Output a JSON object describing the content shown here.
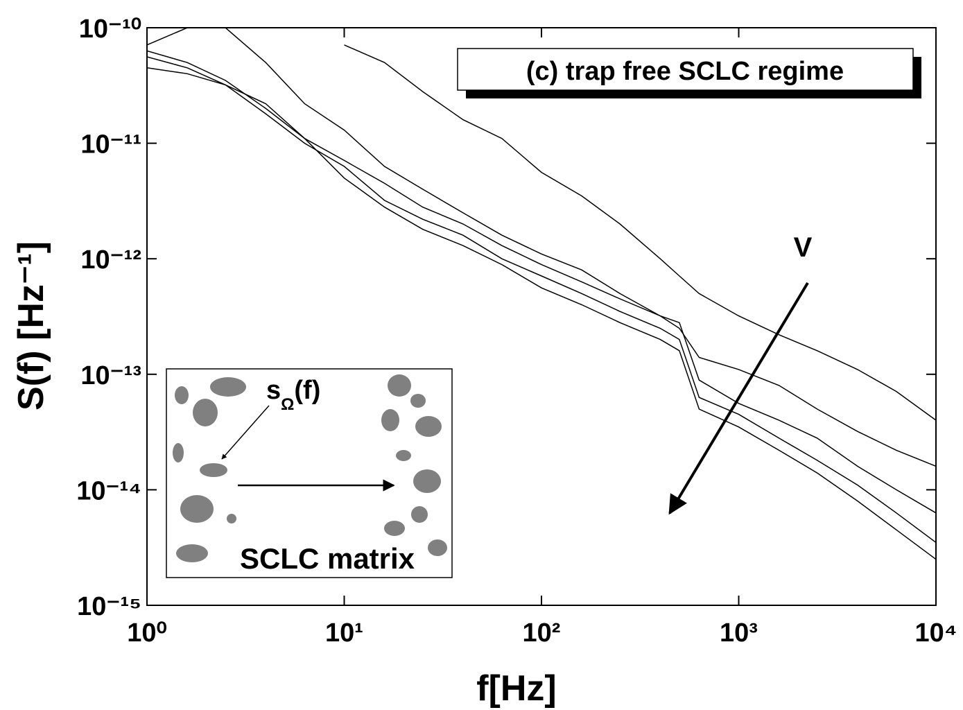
{
  "chart_data": {
    "type": "line",
    "xlabel": "f[Hz]",
    "ylabel": "S(f) [Hz⁻¹]",
    "xscale": "log",
    "yscale": "log",
    "xlim": [
      1,
      10000
    ],
    "ylim": [
      1e-15,
      1e-10
    ],
    "xticks": [
      {
        "value": 1,
        "label": "10⁰"
      },
      {
        "value": 10,
        "label": "10¹"
      },
      {
        "value": 100,
        "label": "10²"
      },
      {
        "value": 1000,
        "label": "10³"
      },
      {
        "value": 10000,
        "label": "10⁴"
      }
    ],
    "yticks": [
      {
        "value": 1e-15,
        "label": "10⁻¹⁵"
      },
      {
        "value": 1e-14,
        "label": "10⁻¹⁴"
      },
      {
        "value": 1e-13,
        "label": "10⁻¹³"
      },
      {
        "value": 1e-12,
        "label": "10⁻¹²"
      },
      {
        "value": 1e-11,
        "label": "10⁻¹¹"
      },
      {
        "value": 1e-10,
        "label": "10⁻¹⁰"
      }
    ],
    "x": [
      1,
      1.6,
      2.5,
      4,
      6.3,
      10,
      16,
      25,
      40,
      63,
      100,
      160,
      250,
      400,
      500,
      630,
      1000,
      1600,
      2500,
      4000,
      6300,
      10000
    ],
    "series": [
      {
        "color": "#000000",
        "values": [
          null,
          null,
          null,
          null,
          null,
          7.1e-11,
          5e-11,
          2.8e-11,
          1.6e-11,
          1.1e-11,
          5.6e-12,
          3.5e-12,
          2e-12,
          1e-12,
          7.1e-13,
          5e-13,
          3.2e-13,
          2.2e-13,
          1.6e-13,
          1.1e-13,
          7.1e-14,
          4e-14
        ]
      },
      {
        "color": "#000000",
        "values": [
          7.1e-11,
          1e-10,
          1e-10,
          5e-11,
          2.2e-11,
          1.3e-11,
          6.3e-12,
          4e-12,
          2.5e-12,
          1.6e-12,
          1.1e-12,
          8e-13,
          5e-13,
          3.2e-13,
          2.5e-13,
          1.4e-13,
          1.1e-13,
          8e-14,
          5e-14,
          3.2e-14,
          2.2e-14,
          1.6e-14
        ]
      },
      {
        "color": "#000000",
        "values": [
          6.3e-11,
          5e-11,
          3.5e-11,
          2e-11,
          1.1e-11,
          7.1e-12,
          4.5e-12,
          2.8e-12,
          2e-12,
          1.3e-12,
          8.9e-13,
          6.3e-13,
          4.5e-13,
          3.2e-13,
          2.8e-13,
          8.9e-14,
          5.6e-14,
          4e-14,
          2.8e-14,
          1.6e-14,
          1e-14,
          6.3e-15
        ]
      },
      {
        "color": "#000000",
        "values": [
          5.6e-11,
          4.5e-11,
          3.2e-11,
          1.8e-11,
          1e-11,
          6.3e-12,
          3.2e-12,
          2.2e-12,
          1.6e-12,
          1e-12,
          7.1e-13,
          5e-13,
          3.5e-13,
          2.5e-13,
          2e-13,
          6.3e-14,
          4.5e-14,
          2.8e-14,
          1.8e-14,
          1.1e-14,
          6.3e-15,
          3.5e-15
        ]
      },
      {
        "color": "#000000",
        "values": [
          4.5e-11,
          4e-11,
          3.2e-11,
          2.2e-11,
          1.1e-11,
          5e-12,
          2.8e-12,
          1.8e-12,
          1.3e-12,
          8.9e-13,
          5.6e-13,
          4e-13,
          2.8e-13,
          2e-13,
          1.6e-13,
          5e-14,
          3.5e-14,
          2.2e-14,
          1.4e-14,
          8e-15,
          4.5e-15,
          2.5e-15
        ]
      }
    ],
    "annotation": "(c) trap free SCLC regime",
    "arrow_label": "V",
    "inset": {
      "label": "s",
      "label_subscript": "Ω",
      "label_suffix": "(f)",
      "caption": "SCLC matrix"
    }
  }
}
